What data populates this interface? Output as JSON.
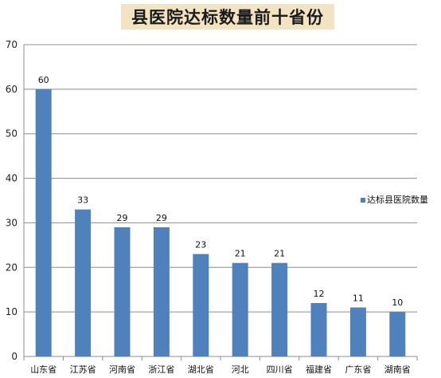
{
  "chart_data": {
    "type": "bar",
    "title": "县医院达标数量前十省份",
    "categories": [
      "山东省",
      "江苏省",
      "河南省",
      "浙江省",
      "湖北省",
      "河北",
      "四川省",
      "福建省",
      "广东省",
      "湖南省"
    ],
    "series": [
      {
        "name": "达标县医院数量",
        "values": [
          60,
          33,
          29,
          29,
          23,
          21,
          21,
          12,
          11,
          10
        ],
        "color": "#4f81bd"
      }
    ],
    "ylim": [
      0,
      70
    ],
    "yticks": [
      0,
      10,
      20,
      30,
      40,
      50,
      60,
      70
    ],
    "grid": true,
    "legend": "right",
    "data_labels": true
  }
}
